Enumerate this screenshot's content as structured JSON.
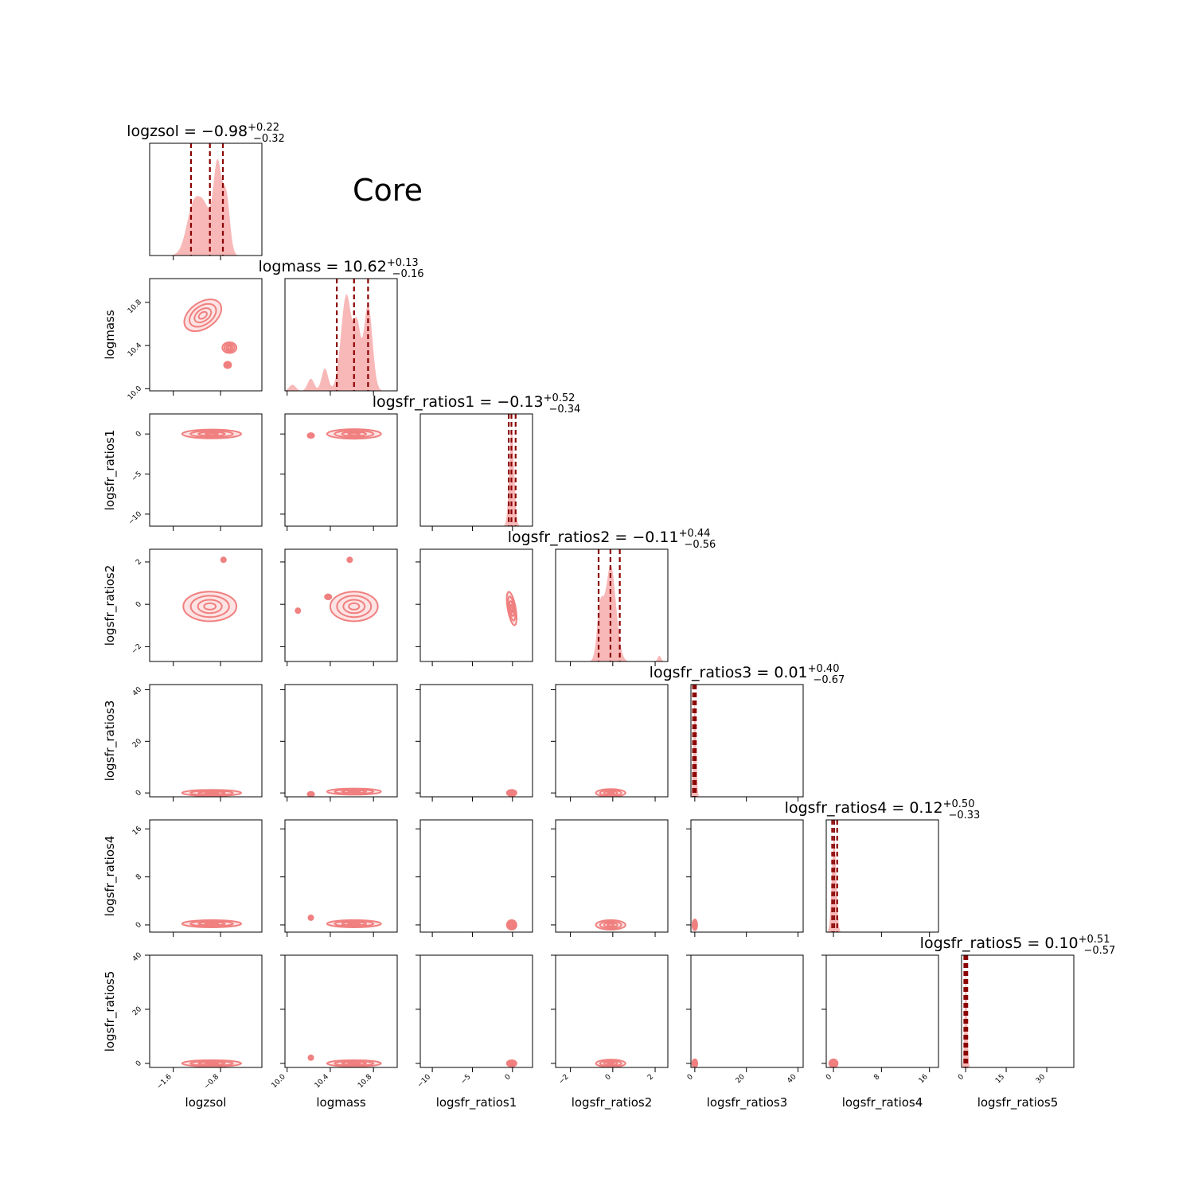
{
  "figure": {
    "label": "Core"
  },
  "chart_data": {
    "type": "corner",
    "parameters": [
      {
        "name": "logzsol",
        "range": [
          -2.0,
          -0.1
        ],
        "ticks": [
          {
            "v": -1.6,
            "label": "−1.6"
          },
          {
            "v": -0.8,
            "label": "−0.8"
          }
        ],
        "median": -0.98,
        "plus": "+0.22",
        "minus": "−0.32",
        "title_main": "logzsol = −0.98",
        "quantiles": [
          -1.3,
          -0.98,
          -0.76
        ]
      },
      {
        "name": "logmass",
        "range": [
          9.98,
          11.02
        ],
        "ticks": [
          {
            "v": 10.0,
            "label": "10.0"
          },
          {
            "v": 10.4,
            "label": "10.4"
          },
          {
            "v": 10.8,
            "label": "10.8"
          }
        ],
        "median": 10.62,
        "plus": "+0.13",
        "minus": "−0.16",
        "title_main": "logmass = 10.62",
        "quantiles": [
          10.46,
          10.62,
          10.75
        ]
      },
      {
        "name": "logsfr_ratios1",
        "range": [
          -11.5,
          2.5
        ],
        "ticks": [
          {
            "v": -10,
            "label": "−10"
          },
          {
            "v": -5,
            "label": "−5"
          },
          {
            "v": 0,
            "label": "0"
          }
        ],
        "median": -0.13,
        "plus": "+0.52",
        "minus": "−0.34",
        "title_main": "logsfr_ratios1 = −0.13",
        "quantiles": [
          -0.47,
          -0.13,
          0.39
        ]
      },
      {
        "name": "logsfr_ratios2",
        "range": [
          -2.7,
          2.6
        ],
        "ticks": [
          {
            "v": -2,
            "label": "−2"
          },
          {
            "v": 0,
            "label": "0"
          },
          {
            "v": 2,
            "label": "2"
          }
        ],
        "median": -0.11,
        "plus": "+0.44",
        "minus": "−0.56",
        "title_main": "logsfr_ratios2 = −0.11",
        "quantiles": [
          -0.67,
          -0.11,
          0.33
        ]
      },
      {
        "name": "logsfr_ratios3",
        "range": [
          -1.5,
          42
        ],
        "ticks": [
          {
            "v": 0,
            "label": "0"
          },
          {
            "v": 20,
            "label": "20"
          },
          {
            "v": 40,
            "label": "40"
          }
        ],
        "median": 0.01,
        "plus": "+0.40",
        "minus": "−0.67",
        "title_main": "logsfr_ratios3 = 0.01",
        "quantiles": [
          -0.66,
          0.01,
          0.41
        ]
      },
      {
        "name": "logsfr_ratios4",
        "range": [
          -1.2,
          17.5
        ],
        "ticks": [
          {
            "v": 0,
            "label": "0"
          },
          {
            "v": 8,
            "label": "8"
          },
          {
            "v": 16,
            "label": "16"
          }
        ],
        "median": 0.12,
        "plus": "+0.50",
        "minus": "−0.33",
        "title_main": "logsfr_ratios4 = 0.12",
        "quantiles": [
          -0.21,
          0.12,
          0.62
        ]
      },
      {
        "name": "logsfr_ratios5",
        "range": [
          -1.5,
          40
        ],
        "ticks": [
          {
            "v": 0,
            "label": "0"
          },
          {
            "v": 15,
            "label": "15"
          },
          {
            "v": 30,
            "label": "30"
          }
        ],
        "median": 0.1,
        "plus": "+0.51",
        "minus": "−0.57",
        "title_main": "logsfr_ratios5 = 0.10",
        "quantiles": [
          -0.47,
          0.1,
          0.61
        ]
      }
    ],
    "y_tick_overrides": {
      "logsfr_ratios3": [
        {
          "v": 0,
          "label": "0"
        },
        {
          "v": 20,
          "label": "20"
        },
        {
          "v": 40,
          "label": "40"
        }
      ],
      "logsfr_ratios4": [
        {
          "v": 0,
          "label": "0"
        },
        {
          "v": 8,
          "label": "8"
        },
        {
          "v": 16,
          "label": "16"
        }
      ],
      "logsfr_ratios5": [
        {
          "v": 0,
          "label": "0"
        },
        {
          "v": 20,
          "label": "20"
        },
        {
          "v": 40,
          "label": "40"
        }
      ]
    },
    "contour_blobs": {
      "1-0": [
        {
          "x": -1.1,
          "y": 10.68,
          "sx": 0.35,
          "sy": 0.12,
          "rot": -35
        },
        {
          "x": -0.65,
          "y": 10.38,
          "sx": 0.12,
          "sy": 0.05,
          "rot": 0
        },
        {
          "x": -0.68,
          "y": 10.22,
          "sx": 0.06,
          "sy": 0.03,
          "rot": 0
        }
      ],
      "2-0": [
        {
          "x": -0.95,
          "y": 0.0,
          "sx": 0.5,
          "sy": 0.55,
          "rot": 0
        }
      ],
      "3-0": [
        {
          "x": -0.98,
          "y": -0.1,
          "sx": 0.45,
          "sy": 0.7,
          "rot": 0
        },
        {
          "x": -0.75,
          "y": 2.1,
          "sx": 0.03,
          "sy": 0.08,
          "rot": 0
        }
      ],
      "4-0": [
        {
          "x": -0.95,
          "y": 0.0,
          "sx": 0.5,
          "sy": 1.2,
          "rot": 0
        }
      ],
      "5-0": [
        {
          "x": -0.95,
          "y": 0.2,
          "sx": 0.5,
          "sy": 0.6,
          "rot": 0
        }
      ],
      "6-0": [
        {
          "x": -0.95,
          "y": 0.0,
          "sx": 0.5,
          "sy": 1.2,
          "rot": 0
        }
      ],
      "2-1": [
        {
          "x": 10.62,
          "y": 0.0,
          "sx": 0.25,
          "sy": 0.6,
          "rot": 0
        },
        {
          "x": 10.22,
          "y": -0.2,
          "sx": 0.03,
          "sy": 0.3,
          "rot": 0
        }
      ],
      "3-1": [
        {
          "x": 10.62,
          "y": -0.1,
          "sx": 0.22,
          "sy": 0.7,
          "rot": 0
        },
        {
          "x": 10.38,
          "y": 0.35,
          "sx": 0.03,
          "sy": 0.12,
          "rot": 0
        },
        {
          "x": 10.1,
          "y": -0.3,
          "sx": 0.02,
          "sy": 0.08,
          "rot": 0
        },
        {
          "x": 10.58,
          "y": 2.1,
          "sx": 0.02,
          "sy": 0.1,
          "rot": 0
        }
      ],
      "4-1": [
        {
          "x": 10.62,
          "y": 0.5,
          "sx": 0.25,
          "sy": 1.2,
          "rot": 0
        },
        {
          "x": 10.22,
          "y": -0.5,
          "sx": 0.03,
          "sy": 0.6,
          "rot": 0
        }
      ],
      "5-1": [
        {
          "x": 10.62,
          "y": 0.2,
          "sx": 0.25,
          "sy": 0.6,
          "rot": 0
        },
        {
          "x": 10.22,
          "y": 1.2,
          "sx": 0.02,
          "sy": 0.4,
          "rot": 0
        }
      ],
      "6-1": [
        {
          "x": 10.62,
          "y": 0.0,
          "sx": 0.25,
          "sy": 1.2,
          "rot": 0
        },
        {
          "x": 10.22,
          "y": 2.1,
          "sx": 0.01,
          "sy": 0.3,
          "rot": 0
        }
      ],
      "3-2": [
        {
          "x": -0.1,
          "y": -0.2,
          "sx": 0.5,
          "sy": 0.8,
          "rot": -10
        }
      ],
      "4-2": [
        {
          "x": -0.1,
          "y": 0.0,
          "sx": 0.6,
          "sy": 1.2,
          "rot": 0
        }
      ],
      "5-2": [
        {
          "x": -0.1,
          "y": 0.0,
          "sx": 0.6,
          "sy": 0.8,
          "rot": 0
        }
      ],
      "6-2": [
        {
          "x": -0.1,
          "y": 0.0,
          "sx": 0.6,
          "sy": 1.2,
          "rot": 0
        }
      ],
      "4-3": [
        {
          "x": -0.1,
          "y": 0.0,
          "sx": 0.7,
          "sy": 1.5,
          "rot": 0
        }
      ],
      "5-3": [
        {
          "x": -0.1,
          "y": 0.0,
          "sx": 0.7,
          "sy": 0.8,
          "rot": 0
        }
      ],
      "6-3": [
        {
          "x": -0.1,
          "y": 0.0,
          "sx": 0.7,
          "sy": 1.4,
          "rot": 0
        }
      ],
      "5-4": [
        {
          "x": 0.0,
          "y": 0.0,
          "sx": 0.9,
          "sy": 0.9,
          "rot": 0
        }
      ],
      "6-4": [
        {
          "x": 0.0,
          "y": 0.0,
          "sx": 1.0,
          "sy": 1.5,
          "rot": 0
        }
      ],
      "6-5": [
        {
          "x": 0.0,
          "y": 0.0,
          "sx": 0.7,
          "sy": 1.5,
          "rot": 0
        }
      ]
    },
    "density_shapes": {
      "0": [
        {
          "mu": -1.25,
          "s": 0.12,
          "a": 0.55
        },
        {
          "mu": -1.05,
          "s": 0.1,
          "a": 0.4
        },
        {
          "mu": -0.85,
          "s": 0.07,
          "a": 0.95
        },
        {
          "mu": -0.7,
          "s": 0.06,
          "a": 0.6
        }
      ],
      "1": [
        {
          "mu": 10.05,
          "s": 0.03,
          "a": 0.06
        },
        {
          "mu": 10.22,
          "s": 0.03,
          "a": 0.12
        },
        {
          "mu": 10.35,
          "s": 0.03,
          "a": 0.22
        },
        {
          "mu": 10.55,
          "s": 0.05,
          "a": 0.95
        },
        {
          "mu": 10.65,
          "s": 0.03,
          "a": 0.55
        },
        {
          "mu": 10.75,
          "s": 0.04,
          "a": 0.85
        }
      ],
      "2": [
        {
          "mu": -0.1,
          "s": 0.3,
          "a": 1.0
        }
      ],
      "3": [
        {
          "mu": -0.6,
          "s": 0.15,
          "a": 0.5
        },
        {
          "mu": -0.1,
          "s": 0.25,
          "a": 1.0
        },
        {
          "mu": 2.2,
          "s": 0.08,
          "a": 0.06
        }
      ],
      "4": [
        {
          "mu": 0.0,
          "s": 0.5,
          "a": 1.0
        }
      ],
      "5": [
        {
          "mu": 0.1,
          "s": 0.35,
          "a": 1.0
        }
      ],
      "6": [
        {
          "mu": 0.1,
          "s": 0.45,
          "a": 1.0
        }
      ]
    },
    "colors": {
      "contour": "#f08080",
      "fill": "#fbd0d0",
      "density": "#f8b8b8",
      "quantile_line": "#8b0000"
    }
  }
}
